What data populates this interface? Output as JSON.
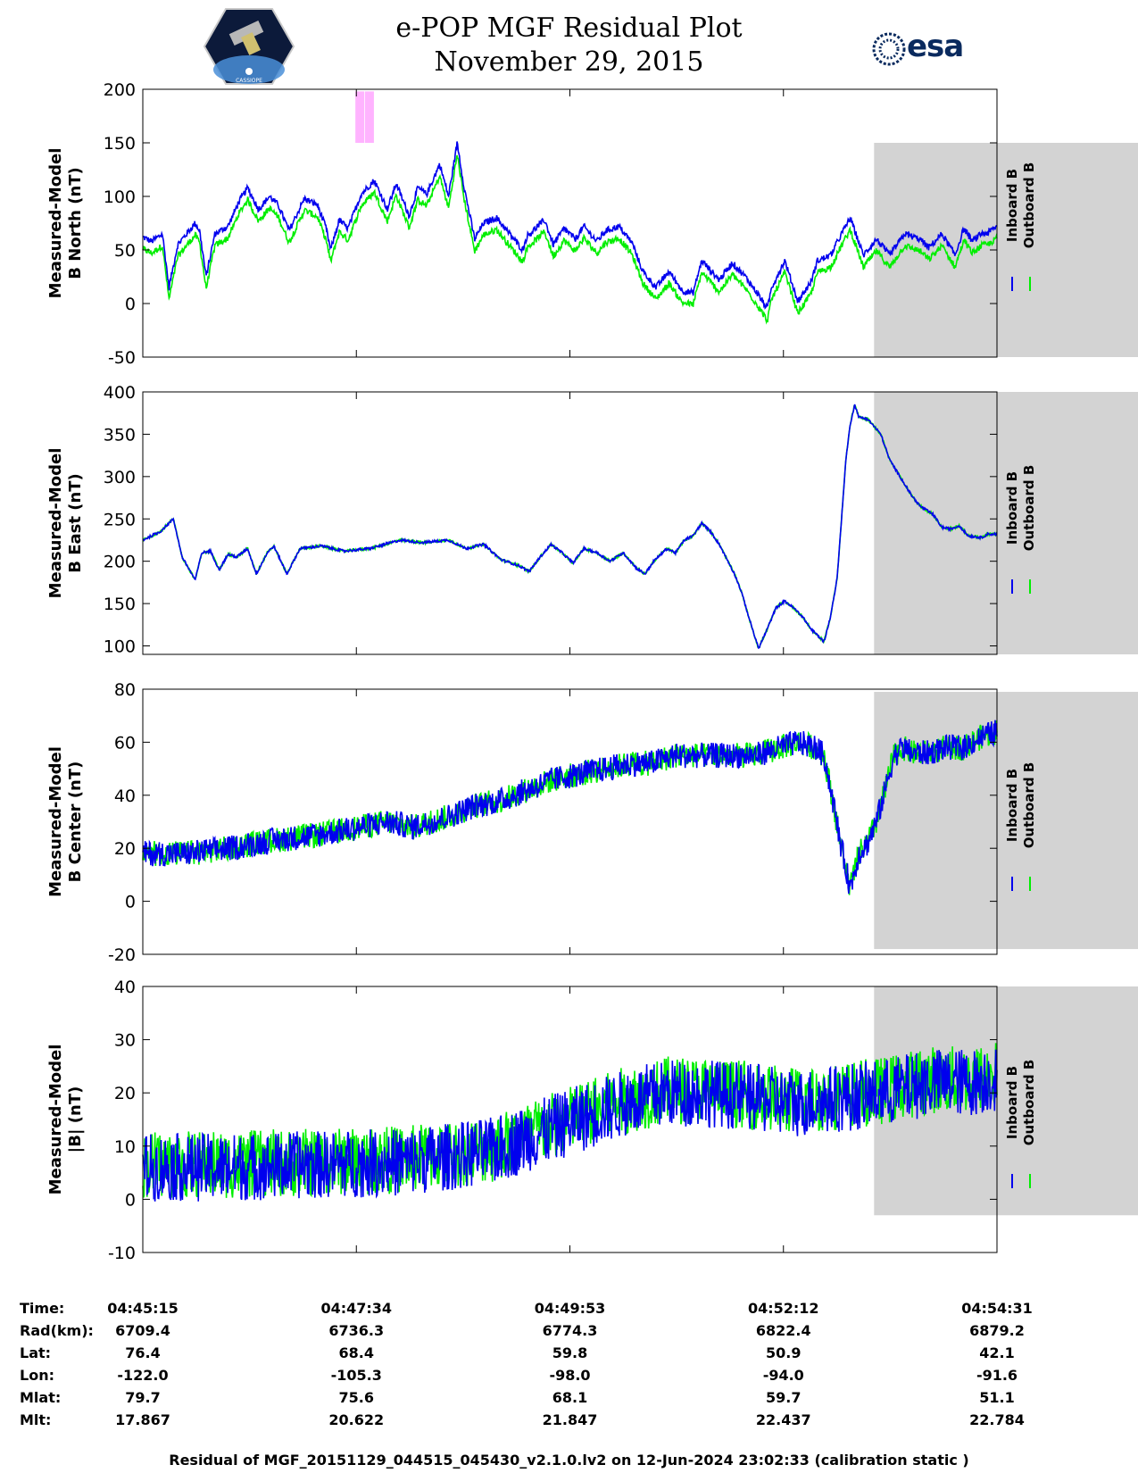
{
  "header": {
    "title_line1": "e-POP MGF Residual Plot",
    "title_line2": "November 29, 2015",
    "esa_logo": "esa",
    "cassiope_logo": "CASSIOPE"
  },
  "colors": {
    "inboard": "#0000ee",
    "outboard": "#00ee00",
    "shade": "#d3d3d3",
    "marker": "#ffb3ff"
  },
  "chart_data": [
    {
      "type": "line",
      "ylabel_line1": "Measured-Model",
      "ylabel_line2": "B North (nT)",
      "ylim": [
        -50,
        200
      ],
      "yticks": [
        "200",
        "150",
        "100",
        "50",
        "0",
        "-50"
      ],
      "ytick_values": [
        200,
        150,
        100,
        50,
        0,
        -50
      ],
      "legend": [
        "Inboard B",
        "Outboard B"
      ],
      "shade_range_s": [
        476,
        727
      ],
      "shade_ylim": [
        -50,
        150
      ],
      "markers_s": [
        497,
        519
      ],
      "marker_ylim": [
        150,
        198
      ],
      "noise": 6,
      "series": {
        "inboard_knots": [
          [
            0,
            62
          ],
          [
            20,
            58
          ],
          [
            45,
            65
          ],
          [
            60,
            15
          ],
          [
            80,
            55
          ],
          [
            120,
            75
          ],
          [
            130,
            68
          ],
          [
            145,
            25
          ],
          [
            165,
            65
          ],
          [
            195,
            72
          ],
          [
            220,
            95
          ],
          [
            240,
            108
          ],
          [
            265,
            88
          ],
          [
            290,
            100
          ],
          [
            310,
            92
          ],
          [
            335,
            68
          ],
          [
            370,
            98
          ],
          [
            400,
            92
          ],
          [
            420,
            70
          ],
          [
            430,
            50
          ],
          [
            450,
            78
          ],
          [
            470,
            70
          ],
          [
            500,
            102
          ],
          [
            530,
            115
          ],
          [
            560,
            88
          ],
          [
            580,
            112
          ],
          [
            610,
            82
          ],
          [
            630,
            108
          ],
          [
            650,
            102
          ],
          [
            680,
            130
          ],
          [
            700,
            100
          ],
          [
            720,
            150
          ],
          [
            736,
            108
          ],
          [
            760,
            60
          ],
          [
            780,
            75
          ],
          [
            810,
            80
          ],
          [
            840,
            65
          ],
          [
            870,
            50
          ],
          [
            880,
            63
          ],
          [
            920,
            78
          ],
          [
            940,
            55
          ],
          [
            965,
            70
          ],
          [
            990,
            60
          ],
          [
            1010,
            72
          ],
          [
            1040,
            58
          ],
          [
            1060,
            68
          ],
          [
            1090,
            72
          ],
          [
            1120,
            57
          ],
          [
            1145,
            30
          ],
          [
            1175,
            15
          ],
          [
            1205,
            30
          ],
          [
            1235,
            12
          ],
          [
            1260,
            10
          ],
          [
            1280,
            40
          ],
          [
            1320,
            22
          ],
          [
            1350,
            38
          ],
          [
            1380,
            25
          ],
          [
            1410,
            8
          ],
          [
            1430,
            -5
          ],
          [
            1440,
            15
          ],
          [
            1470,
            40
          ],
          [
            1500,
            2
          ],
          [
            1530,
            20
          ],
          [
            1545,
            40
          ],
          [
            1575,
            45
          ],
          [
            1600,
            65
          ],
          [
            1620,
            80
          ],
          [
            1650,
            45
          ],
          [
            1680,
            60
          ],
          [
            1710,
            45
          ],
          [
            1745,
            65
          ],
          [
            1780,
            60
          ],
          [
            1800,
            52
          ],
          [
            1830,
            65
          ],
          [
            1860,
            45
          ],
          [
            1880,
            70
          ],
          [
            1900,
            58
          ],
          [
            1920,
            65
          ],
          [
            1935,
            66
          ],
          [
            1956,
            72
          ]
        ]
      },
      "outboard_offset": -11
    },
    {
      "type": "line",
      "ylabel_line1": "Measured-Model",
      "ylabel_line2": "B East (nT)",
      "ylim": [
        90,
        400
      ],
      "yticks": [
        "400",
        "350",
        "300",
        "250",
        "200",
        "150",
        "100"
      ],
      "ytick_values": [
        400,
        350,
        300,
        250,
        200,
        150,
        100
      ],
      "legend": [
        "Inboard B",
        "Outboard B"
      ],
      "shade_range_s": [
        476,
        727
      ],
      "shade_ylim": [
        90,
        400
      ],
      "noise": 3,
      "series": {
        "inboard_knots": [
          [
            0,
            225
          ],
          [
            40,
            235
          ],
          [
            70,
            250
          ],
          [
            90,
            205
          ],
          [
            120,
            178
          ],
          [
            135,
            210
          ],
          [
            155,
            212
          ],
          [
            175,
            190
          ],
          [
            195,
            208
          ],
          [
            215,
            205
          ],
          [
            240,
            215
          ],
          [
            260,
            185
          ],
          [
            285,
            210
          ],
          [
            300,
            218
          ],
          [
            330,
            185
          ],
          [
            360,
            215
          ],
          [
            410,
            218
          ],
          [
            460,
            212
          ],
          [
            520,
            215
          ],
          [
            590,
            225
          ],
          [
            640,
            222
          ],
          [
            700,
            225
          ],
          [
            740,
            215
          ],
          [
            780,
            220
          ],
          [
            820,
            202
          ],
          [
            860,
            195
          ],
          [
            885,
            188
          ],
          [
            910,
            205
          ],
          [
            935,
            220
          ],
          [
            960,
            210
          ],
          [
            985,
            198
          ],
          [
            1010,
            215
          ],
          [
            1040,
            210
          ],
          [
            1070,
            200
          ],
          [
            1100,
            210
          ],
          [
            1130,
            192
          ],
          [
            1150,
            185
          ],
          [
            1170,
            200
          ],
          [
            1200,
            215
          ],
          [
            1220,
            210
          ],
          [
            1240,
            225
          ],
          [
            1260,
            230
          ],
          [
            1280,
            245
          ],
          [
            1300,
            235
          ],
          [
            1320,
            220
          ],
          [
            1340,
            200
          ],
          [
            1355,
            185
          ],
          [
            1370,
            165
          ],
          [
            1390,
            130
          ],
          [
            1410,
            97
          ],
          [
            1430,
            120
          ],
          [
            1450,
            145
          ],
          [
            1470,
            153
          ],
          [
            1490,
            145
          ],
          [
            1510,
            135
          ],
          [
            1530,
            120
          ],
          [
            1550,
            110
          ],
          [
            1560,
            105
          ],
          [
            1575,
            135
          ],
          [
            1590,
            180
          ],
          [
            1600,
            250
          ],
          [
            1610,
            320
          ],
          [
            1620,
            362
          ],
          [
            1630,
            385
          ],
          [
            1640,
            370
          ],
          [
            1660,
            368
          ],
          [
            1690,
            350
          ],
          [
            1710,
            320
          ],
          [
            1740,
            295
          ],
          [
            1760,
            278
          ],
          [
            1780,
            265
          ],
          [
            1810,
            255
          ],
          [
            1830,
            240
          ],
          [
            1850,
            238
          ],
          [
            1870,
            242
          ],
          [
            1890,
            230
          ],
          [
            1920,
            228
          ],
          [
            1935,
            232
          ],
          [
            1956,
            232
          ]
        ]
      },
      "outboard_offset": 0
    },
    {
      "type": "line",
      "ylabel_line1": "Measured-Model",
      "ylabel_line2": "B Center (nT)",
      "ylim": [
        -20,
        80
      ],
      "yticks": [
        "80",
        "60",
        "40",
        "20",
        "0",
        "-20"
      ],
      "ytick_values": [
        80,
        60,
        40,
        20,
        0,
        -20
      ],
      "legend": [
        "Inboard B",
        "Outboard B"
      ],
      "shade_range_s": [
        476,
        727
      ],
      "shade_ylim": [
        -18,
        79
      ],
      "noise": 6,
      "series": {
        "inboard_knots": [
          [
            0,
            18
          ],
          [
            100,
            18
          ],
          [
            200,
            20
          ],
          [
            300,
            23
          ],
          [
            400,
            25
          ],
          [
            500,
            28
          ],
          [
            560,
            30
          ],
          [
            620,
            28
          ],
          [
            700,
            32
          ],
          [
            760,
            36
          ],
          [
            820,
            38
          ],
          [
            880,
            42
          ],
          [
            940,
            46
          ],
          [
            1000,
            48
          ],
          [
            1060,
            50
          ],
          [
            1120,
            52
          ],
          [
            1160,
            52
          ],
          [
            1220,
            55
          ],
          [
            1280,
            55
          ],
          [
            1340,
            55
          ],
          [
            1400,
            55
          ],
          [
            1460,
            58
          ],
          [
            1500,
            60
          ],
          [
            1540,
            58
          ],
          [
            1560,
            55
          ],
          [
            1580,
            38
          ],
          [
            1600,
            20
          ],
          [
            1620,
            5
          ],
          [
            1640,
            18
          ],
          [
            1660,
            22
          ],
          [
            1680,
            30
          ],
          [
            1700,
            42
          ],
          [
            1720,
            55
          ],
          [
            1740,
            58
          ],
          [
            1760,
            56
          ],
          [
            1800,
            56
          ],
          [
            1840,
            58
          ],
          [
            1880,
            58
          ],
          [
            1920,
            62
          ],
          [
            1956,
            64
          ]
        ]
      },
      "outboard_offset": 0
    },
    {
      "type": "line",
      "ylabel_line1": "Measured-Model",
      "ylabel_line2": "|B| (nT)",
      "ylim": [
        -10,
        40
      ],
      "yticks": [
        "40",
        "30",
        "20",
        "10",
        "0",
        "-10"
      ],
      "ytick_values": [
        40,
        30,
        20,
        10,
        0,
        -10
      ],
      "legend": [
        "Inboard B",
        "Outboard B"
      ],
      "shade_range_s": [
        476,
        727
      ],
      "shade_ylim": [
        -3,
        40
      ],
      "noise": 8,
      "series": {
        "inboard_knots": [
          [
            0,
            6
          ],
          [
            200,
            6
          ],
          [
            400,
            6.5
          ],
          [
            600,
            7
          ],
          [
            800,
            9
          ],
          [
            960,
            14
          ],
          [
            1100,
            18
          ],
          [
            1200,
            20
          ],
          [
            1300,
            20
          ],
          [
            1400,
            19
          ],
          [
            1500,
            18
          ],
          [
            1600,
            19
          ],
          [
            1700,
            20
          ],
          [
            1800,
            22
          ],
          [
            1900,
            22
          ],
          [
            1956,
            23
          ]
        ]
      },
      "outboard_offset": 0.5
    }
  ],
  "x_axis": {
    "start_s": 0,
    "end_s": 556,
    "tick_values_s": [
      0,
      139,
      278,
      417,
      556
    ]
  },
  "info": {
    "labels": [
      "Time:",
      "Rad(km):",
      "Lat:",
      "Lon:",
      "Mlat:",
      "Mlt:"
    ],
    "columns": [
      [
        "04:45:15",
        "6709.4",
        "76.4",
        "-122.0",
        "79.7",
        "17.867"
      ],
      [
        "04:47:34",
        "6736.3",
        "68.4",
        "-105.3",
        "75.6",
        "20.622"
      ],
      [
        "04:49:53",
        "6774.3",
        "59.8",
        "-98.0",
        "68.1",
        "21.847"
      ],
      [
        "04:52:12",
        "6822.4",
        "50.9",
        "-94.0",
        "59.7",
        "22.437"
      ],
      [
        "04:54:31",
        "6879.2",
        "42.1",
        "-91.6",
        "51.1",
        "22.784"
      ]
    ]
  },
  "footer": "Residual of MGF_20151129_044515_045430_v2.1.0.lv2 on 12-Jun-2024 23:02:33 (calibration static )"
}
